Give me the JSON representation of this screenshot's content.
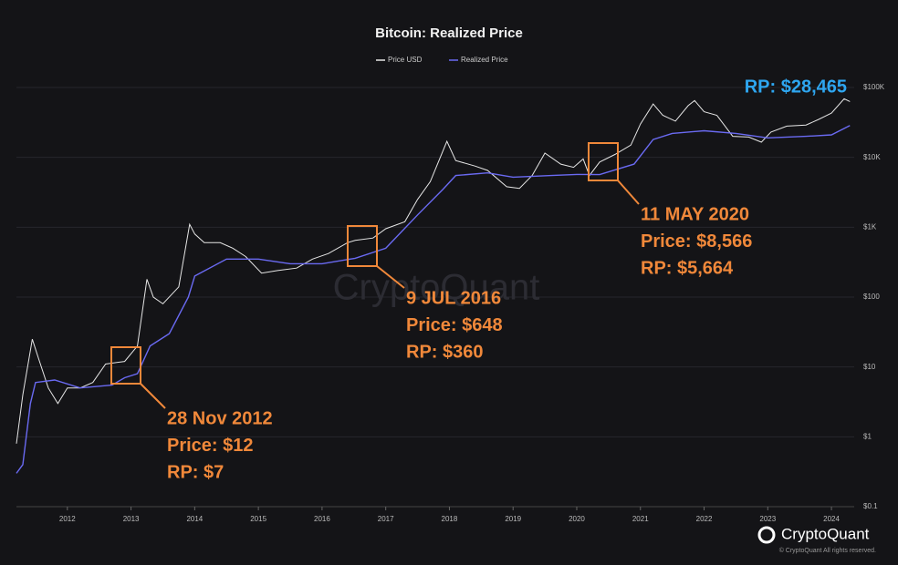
{
  "chart_data": {
    "type": "line",
    "title": "Bitcoin: Realized Price",
    "log_y": true,
    "grid": true,
    "xlim": [
      2011.2,
      2024.3
    ],
    "xticks": [
      2012,
      2013,
      2014,
      2015,
      2016,
      2017,
      2018,
      2019,
      2020,
      2021,
      2022,
      2023,
      2024
    ],
    "ylim": [
      0.1,
      100000
    ],
    "yticks": [
      {
        "value": 0.1,
        "label": "$0.1"
      },
      {
        "value": 1,
        "label": "$1"
      },
      {
        "value": 10,
        "label": "$10"
      },
      {
        "value": 100,
        "label": "$100"
      },
      {
        "value": 1000,
        "label": "$1K"
      },
      {
        "value": 10000,
        "label": "$10K"
      },
      {
        "value": 100000,
        "label": "$100K"
      }
    ],
    "series": [
      {
        "name": "Price USD",
        "color": "#e6e6e6",
        "x": [
          2011.2,
          2011.3,
          2011.45,
          2011.55,
          2011.7,
          2011.85,
          2012.0,
          2012.2,
          2012.4,
          2012.6,
          2012.9,
          2013.1,
          2013.25,
          2013.35,
          2013.5,
          2013.75,
          2013.92,
          2014.0,
          2014.15,
          2014.4,
          2014.6,
          2014.8,
          2015.05,
          2015.3,
          2015.6,
          2015.85,
          2016.1,
          2016.4,
          2016.52,
          2016.8,
          2017.0,
          2017.3,
          2017.5,
          2017.7,
          2017.96,
          2018.1,
          2018.4,
          2018.6,
          2018.9,
          2019.1,
          2019.3,
          2019.5,
          2019.75,
          2019.95,
          2020.1,
          2020.2,
          2020.36,
          2020.6,
          2020.85,
          2021.0,
          2021.2,
          2021.35,
          2021.55,
          2021.75,
          2021.85,
          2022.0,
          2022.2,
          2022.45,
          2022.7,
          2022.9,
          2023.05,
          2023.3,
          2023.6,
          2023.8,
          2024.0,
          2024.2,
          2024.29
        ],
        "values": [
          0.8,
          4,
          25,
          13,
          5,
          3,
          5,
          5,
          6,
          11,
          12,
          20,
          180,
          100,
          80,
          140,
          1100,
          800,
          600,
          600,
          500,
          380,
          220,
          240,
          260,
          350,
          420,
          600,
          648,
          700,
          950,
          1200,
          2500,
          4500,
          17000,
          9000,
          7500,
          6500,
          3800,
          3600,
          5500,
          11500,
          8000,
          7200,
          9500,
          5500,
          8566,
          11000,
          15000,
          30000,
          58000,
          40000,
          33000,
          55000,
          65000,
          45000,
          40000,
          20000,
          19500,
          16500,
          23000,
          28000,
          29000,
          35000,
          43000,
          69000,
          63000
        ]
      },
      {
        "name": "Realized Price",
        "color": "#6a6af2",
        "x": [
          2011.2,
          2011.3,
          2011.42,
          2011.5,
          2011.8,
          2012.2,
          2012.7,
          2012.9,
          2013.1,
          2013.3,
          2013.6,
          2013.9,
          2014.0,
          2014.5,
          2015.0,
          2015.5,
          2016.0,
          2016.52,
          2017.0,
          2017.5,
          2017.9,
          2018.1,
          2018.6,
          2019.0,
          2019.6,
          2020.0,
          2020.36,
          2020.9,
          2021.2,
          2021.5,
          2022.0,
          2022.5,
          2023.0,
          2023.6,
          2024.0,
          2024.29
        ],
        "values": [
          0.3,
          0.4,
          3,
          6,
          6.5,
          5,
          5.5,
          7,
          8,
          20,
          30,
          100,
          200,
          350,
          350,
          300,
          300,
          360,
          500,
          1500,
          3500,
          5500,
          6000,
          5200,
          5500,
          5700,
          5664,
          8000,
          18000,
          22000,
          24000,
          22000,
          19000,
          20000,
          21000,
          28465
        ]
      }
    ],
    "annotations": [
      {
        "date": "28 Nov 2012",
        "price": "Price: $12",
        "rp": "RP: $7"
      },
      {
        "date": "9 JUL 2016",
        "price": "Price: $648",
        "rp": "RP: $360"
      },
      {
        "date": "11 MAY 2020",
        "price": "Price: $8,566",
        "rp": "RP: $5,664"
      }
    ],
    "current_label": "RP: $28,465",
    "watermark": "CryptoQuant",
    "brand": "CryptoQuant",
    "copyright": "© CryptoQuant All rights reserved."
  }
}
